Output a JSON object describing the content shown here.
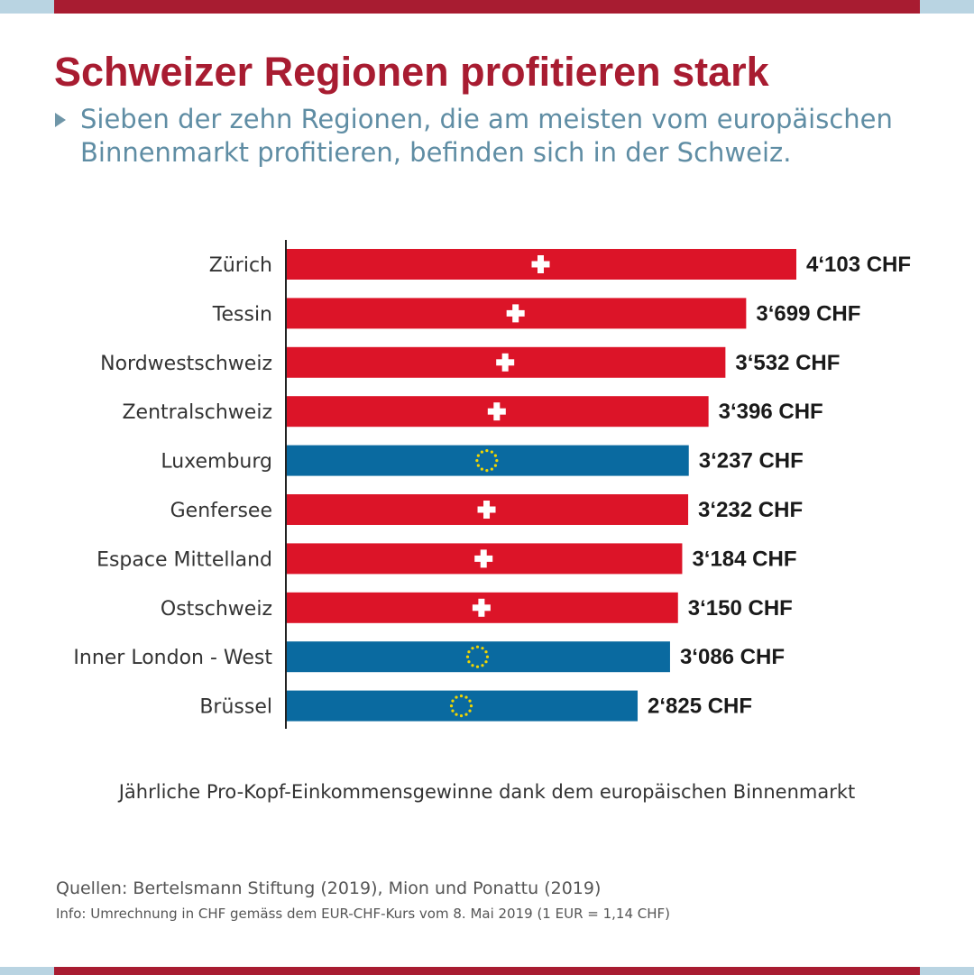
{
  "colors": {
    "swiss_red": "#dc1428",
    "eu_blue": "#0a6aa0",
    "title_red": "#a81c31",
    "band_red": "#a81c31",
    "band_light": "#b9d4e2",
    "eu_star": "#f2d600",
    "cross": "#ffffff"
  },
  "header": {
    "title": "Schweizer Regionen profitieren stark",
    "subtitle": "Sieben der zehn Regionen, die am meisten vom europäischen Binnenmarkt profitieren, befinden sich in der Schweiz."
  },
  "chart_data": {
    "type": "bar",
    "orientation": "horizontal",
    "title": "",
    "xlabel": "Jährliche Pro-Kopf-Einkommensgewinne dank dem europäischen Binnenmarkt",
    "ylabel": "",
    "grid": false,
    "xlim": [
      0,
      4103
    ],
    "categories": [
      "Zürich",
      "Tessin",
      "Nordwestschweiz",
      "Zentralschweiz",
      "Luxemburg",
      "Genfersee",
      "Espace Mittelland",
      "Ostschweiz",
      "Inner London - West",
      "Brüssel"
    ],
    "values": [
      4103,
      3699,
      3532,
      3396,
      3237,
      3232,
      3184,
      3150,
      3086,
      2825
    ],
    "value_labels": [
      "4‘103 CHF",
      "3‘699 CHF",
      "3‘532 CHF",
      "3‘396 CHF",
      "3‘237 CHF",
      "3‘232 CHF",
      "3‘184 CHF",
      "3‘150 CHF",
      "3‘086 CHF",
      "2‘825 CHF"
    ],
    "bar_group": [
      "swiss",
      "swiss",
      "swiss",
      "swiss",
      "eu",
      "swiss",
      "swiss",
      "swiss",
      "eu",
      "eu"
    ],
    "bar_icon": [
      "swiss-cross-icon",
      "swiss-cross-icon",
      "swiss-cross-icon",
      "swiss-cross-icon",
      "eu-stars-icon",
      "swiss-cross-icon",
      "swiss-cross-icon",
      "swiss-cross-icon",
      "eu-stars-icon",
      "eu-stars-icon"
    ]
  },
  "footer": {
    "sources": "Quellen: Bertelsmann Stiftung (2019), Mion und Ponattu (2019)",
    "info": "Info: Umrechnung in CHF gemäss dem EUR-CHF-Kurs vom 8. Mai 2019 (1 EUR = 1,14 CHF)"
  }
}
